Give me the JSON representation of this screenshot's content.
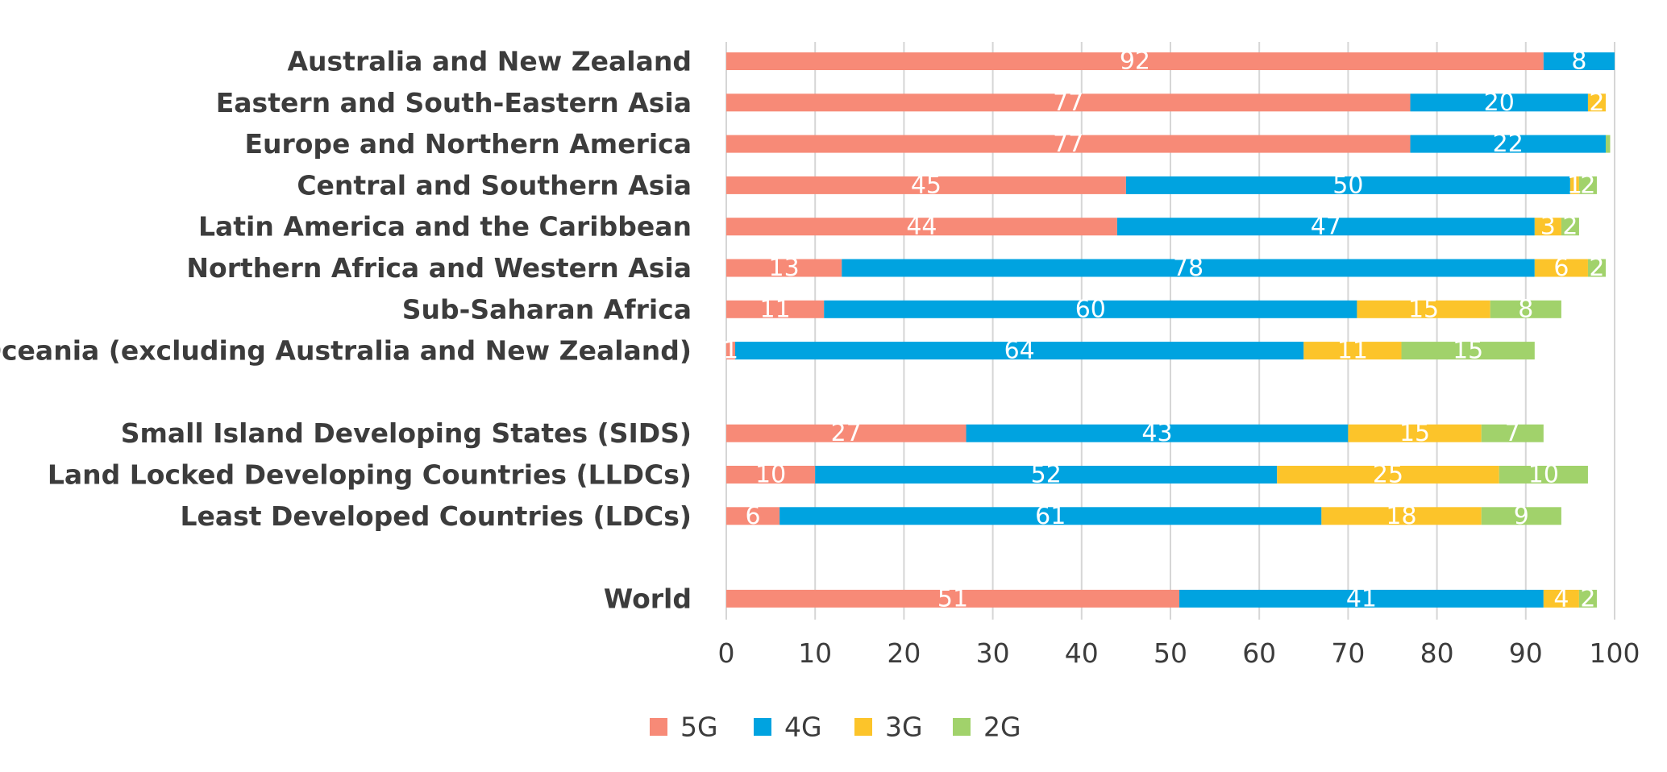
{
  "chart_data": {
    "type": "bar",
    "orientation": "horizontal",
    "stacked": true,
    "categories": [
      "Australia and New Zealand",
      "Eastern and South-Eastern Asia",
      "Europe and Northern America",
      "Central and Southern Asia",
      "Latin America and the Caribbean",
      "Northern Africa and Western Asia",
      "Sub-Saharan Africa",
      "Oceania (excluding Australia and New Zealand)",
      "",
      "Small Island Developing States (SIDS)",
      "Land Locked Developing Countries (LLDCs)",
      "Least Developed Countries (LDCs)",
      "",
      "World"
    ],
    "series": [
      {
        "name": "5G",
        "color": "#f78a77",
        "values": [
          92,
          77,
          77,
          45,
          44,
          13,
          11,
          1,
          null,
          27,
          10,
          6,
          null,
          51
        ]
      },
      {
        "name": "4G",
        "color": "#00a3e0",
        "values": [
          8,
          20,
          22,
          50,
          47,
          78,
          60,
          64,
          null,
          43,
          52,
          61,
          null,
          41
        ]
      },
      {
        "name": "3G",
        "color": "#fcc42a",
        "values": [
          0,
          2,
          0,
          1,
          3,
          6,
          15,
          11,
          null,
          15,
          25,
          18,
          null,
          4
        ]
      },
      {
        "name": "2G",
        "color": "#a1d26b",
        "values": [
          0,
          0,
          0.5,
          2,
          2,
          2,
          8,
          15,
          null,
          7,
          10,
          9,
          null,
          2
        ]
      }
    ],
    "data_labels": [
      [
        "92",
        "8",
        "",
        ""
      ],
      [
        "77",
        "20",
        "2",
        ""
      ],
      [
        "77",
        "22",
        "",
        ""
      ],
      [
        "45",
        "50",
        "1",
        "2"
      ],
      [
        "44",
        "47",
        "3",
        "2"
      ],
      [
        "13",
        "78",
        "6",
        "2"
      ],
      [
        "11",
        "60",
        "15",
        "8"
      ],
      [
        "1",
        "64",
        "11",
        "15"
      ],
      [
        "",
        "",
        "",
        ""
      ],
      [
        "27",
        "43",
        "15",
        "7"
      ],
      [
        "10",
        "52",
        "25",
        "10"
      ],
      [
        "6",
        "61",
        "18",
        "9"
      ],
      [
        "",
        "",
        "",
        ""
      ],
      [
        "51",
        "41",
        "4",
        "2"
      ]
    ],
    "x_ticks": [
      "0",
      "10",
      "20",
      "30",
      "40",
      "50",
      "60",
      "70",
      "80",
      "90",
      "100"
    ],
    "xlim": [
      0,
      100
    ],
    "grid": true,
    "legend_position": "bottom",
    "title": "",
    "xlabel": "",
    "ylabel": ""
  }
}
